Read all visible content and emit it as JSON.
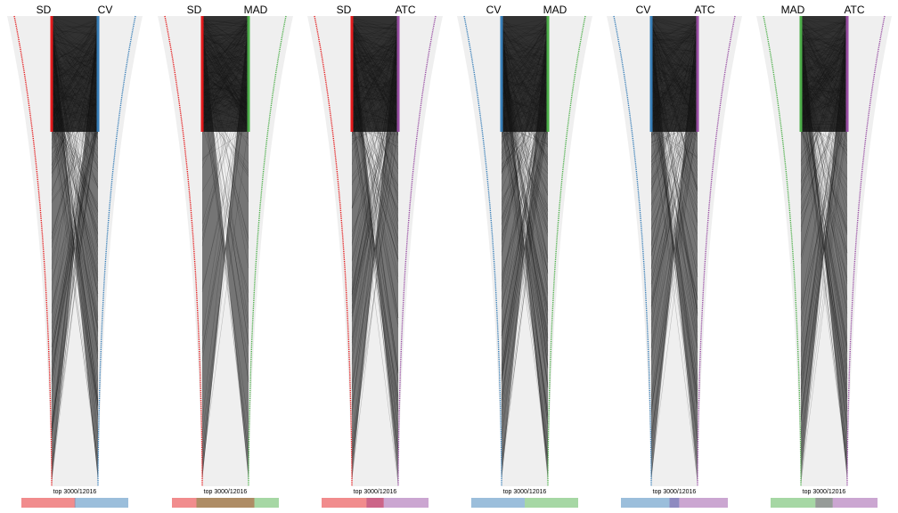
{
  "chart_data": {
    "type": "parallel-coordinates",
    "top_text": "top 3000/12016",
    "top_n": 3000,
    "total_n": 12016,
    "colors": {
      "SD": "#e41a1c",
      "CV": "#377eb8",
      "MAD": "#4daf4a",
      "ATC": "#984ea3",
      "background": "#efefef",
      "lines": "#000000"
    },
    "panels": [
      {
        "left": "SD",
        "right": "CV",
        "bar": [
          {
            "group": "SD only",
            "count": 1800
          },
          {
            "group": "both",
            "count": 20
          },
          {
            "group": "CV only",
            "count": 1800
          }
        ]
      },
      {
        "left": "SD",
        "right": "MAD",
        "bar": [
          {
            "group": "SD only",
            "count": 550
          },
          {
            "group": "both",
            "count": 1300
          },
          {
            "group": "MAD only",
            "count": 550
          }
        ]
      },
      {
        "left": "SD",
        "right": "ATC",
        "bar": [
          {
            "group": "SD only",
            "count": 1300
          },
          {
            "group": "both",
            "count": 500
          },
          {
            "group": "ATC only",
            "count": 1300
          }
        ]
      },
      {
        "left": "CV",
        "right": "MAD",
        "bar": [
          {
            "group": "CV only",
            "count": 1800
          },
          {
            "group": "both",
            "count": 0
          },
          {
            "group": "MAD only",
            "count": 1800
          }
        ]
      },
      {
        "left": "CV",
        "right": "ATC",
        "bar": [
          {
            "group": "CV only",
            "count": 1500
          },
          {
            "group": "both",
            "count": 300
          },
          {
            "group": "ATC only",
            "count": 1500
          }
        ]
      },
      {
        "left": "MAD",
        "right": "ATC",
        "bar": [
          {
            "group": "MAD only",
            "count": 1300
          },
          {
            "group": "both",
            "count": 500
          },
          {
            "group": "ATC only",
            "count": 1300
          }
        ]
      }
    ]
  }
}
